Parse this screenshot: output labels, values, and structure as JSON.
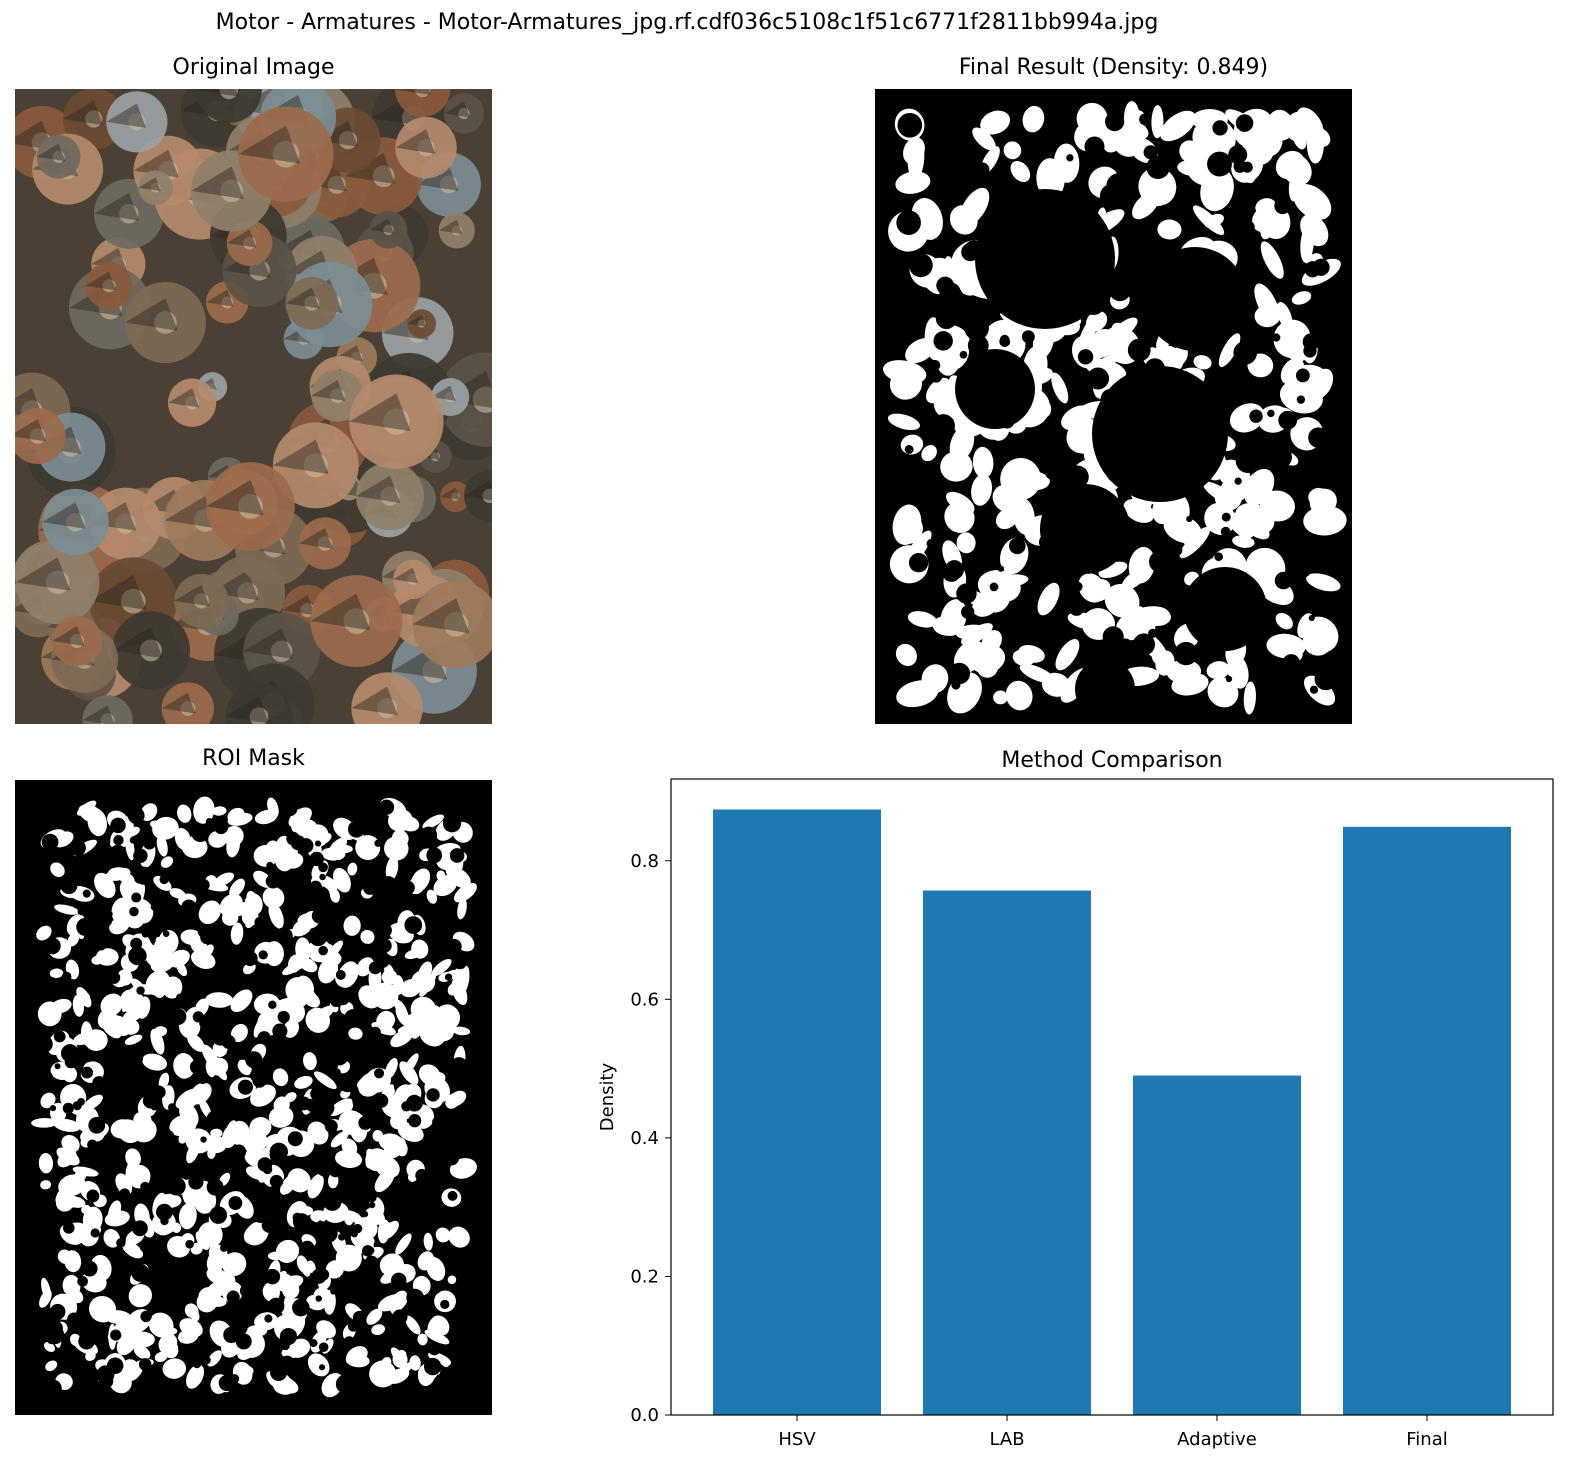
{
  "figure_title": "Motor - Armatures - Motor-Armatures_jpg.rf.cdf036c5108c1f51c6771f2811bb994a.jpg",
  "panels": {
    "original": {
      "title": "Original Image"
    },
    "final": {
      "title": "Final Result (Density: 0.849)"
    },
    "roi": {
      "title": "ROI Mask"
    }
  },
  "colors": {
    "bar": "#1f77b4",
    "mask_fg": "#ffffff",
    "mask_bg": "#000000"
  },
  "chart_data": {
    "type": "bar",
    "title": "Method Comparison",
    "categories": [
      "HSV",
      "LAB",
      "Adaptive",
      "Final"
    ],
    "values": [
      0.874,
      0.757,
      0.49,
      0.849
    ],
    "xlabel": "",
    "ylabel": "Density",
    "ylim": [
      0,
      0.918
    ],
    "yticks": [
      0.0,
      0.2,
      0.4,
      0.6,
      0.8
    ],
    "ytick_labels": [
      "0.0",
      "0.2",
      "0.4",
      "0.6",
      "0.8"
    ],
    "grid": false
  }
}
